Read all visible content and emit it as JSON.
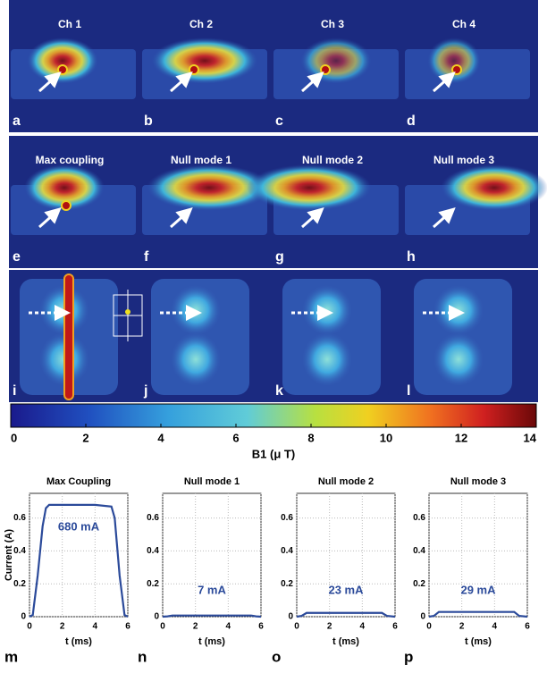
{
  "panels": [
    {
      "title": "Ch 1",
      "label": "a"
    },
    {
      "title": "Ch 2",
      "label": "b"
    },
    {
      "title": "Ch 3",
      "label": "c"
    },
    {
      "title": "Ch 4",
      "label": "d"
    },
    {
      "title": "Max coupling",
      "label": "e"
    },
    {
      "title": "Null mode 1",
      "label": "f"
    },
    {
      "title": "Null mode 2",
      "label": "g"
    },
    {
      "title": "Null mode 3",
      "label": "h"
    },
    {
      "label": "i"
    },
    {
      "label": "j"
    },
    {
      "label": "k"
    },
    {
      "label": "l"
    }
  ],
  "colorbar": {
    "label": "B1 (μ T)",
    "lim": [
      0,
      14
    ],
    "ticks": [
      0,
      2,
      4,
      6,
      8,
      10,
      12,
      14
    ]
  },
  "chart_data": [
    {
      "type": "line",
      "title": "Max Coupling",
      "label": "m",
      "annotation": "680 mA",
      "xlabel": "t (ms)",
      "ylabel": "Current (A)",
      "x": [
        0,
        0.2,
        0.5,
        0.8,
        1.0,
        1.2,
        2,
        3,
        4,
        5,
        5.2,
        5.5,
        5.8,
        6
      ],
      "values": [
        0,
        0.01,
        0.25,
        0.55,
        0.66,
        0.68,
        0.68,
        0.68,
        0.68,
        0.67,
        0.6,
        0.25,
        0.01,
        0
      ],
      "color": "#2b4a9a",
      "xlim": [
        0,
        6
      ],
      "ylim": [
        0,
        0.75
      ],
      "xticks": [
        0,
        2,
        4,
        6
      ],
      "yticks": [
        0,
        0.2,
        0.4,
        0.6
      ],
      "grid": true
    },
    {
      "type": "line",
      "title": "Null mode 1",
      "label": "n",
      "annotation": "7 mA",
      "xlabel": "t (ms)",
      "x": [
        0,
        0.3,
        0.6,
        5.4,
        5.7,
        6
      ],
      "values": [
        0,
        0.002,
        0.007,
        0.007,
        0.002,
        0
      ],
      "color": "#2b4a9a",
      "xlim": [
        0,
        6
      ],
      "ylim": [
        0,
        0.75
      ],
      "xticks": [
        0,
        2,
        4,
        6
      ],
      "yticks": [
        0,
        0.2,
        0.4,
        0.6
      ],
      "grid": true
    },
    {
      "type": "line",
      "title": "Null mode 2",
      "label": "o",
      "annotation": "23 mA",
      "xlabel": "t (ms)",
      "x": [
        0,
        0.3,
        0.6,
        5.2,
        5.5,
        6
      ],
      "values": [
        0,
        0.005,
        0.023,
        0.023,
        0.005,
        0
      ],
      "color": "#2b4a9a",
      "xlim": [
        0,
        6
      ],
      "ylim": [
        0,
        0.75
      ],
      "xticks": [
        0,
        2,
        4,
        6
      ],
      "yticks": [
        0,
        0.2,
        0.4,
        0.6
      ],
      "grid": true
    },
    {
      "type": "line",
      "title": "Null mode 3",
      "label": "p",
      "annotation": "29 mA",
      "xlabel": "t (ms)",
      "x": [
        0,
        0.3,
        0.6,
        5.2,
        5.5,
        6
      ],
      "values": [
        0,
        0.005,
        0.029,
        0.029,
        0.005,
        0
      ],
      "color": "#2b4a9a",
      "xlim": [
        0,
        6
      ],
      "ylim": [
        0,
        0.75
      ],
      "xticks": [
        0,
        2,
        4,
        6
      ],
      "yticks": [
        0,
        0.2,
        0.4,
        0.6
      ],
      "grid": true
    }
  ]
}
